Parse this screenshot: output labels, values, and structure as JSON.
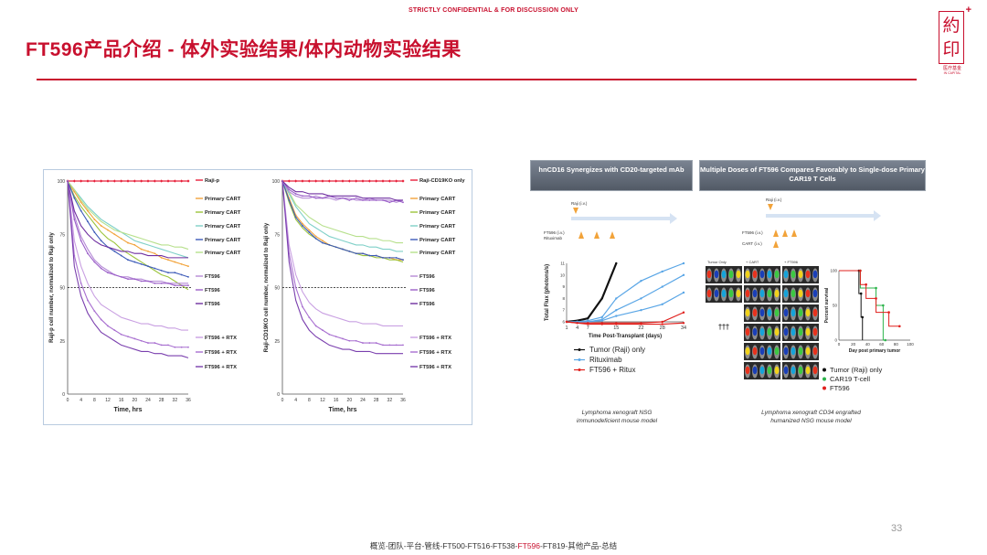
{
  "header": {
    "confidential": "STRICTLY CONFIDENTIAL & FOR DISCUSSION ONLY",
    "title": "FT596产品介绍 - 体外实验结果/体内动物实验结果"
  },
  "logo": {
    "glyph_top": "約",
    "glyph_bottom": "印",
    "plus": "+",
    "cn": "医疗基金",
    "en": "IN CAPITAL"
  },
  "page_number": "33",
  "footer": {
    "before": "概览-团队-平台-管线-FT500-FT516-FT538-",
    "highlight": "FT596",
    "after": "-FT819-其他产品-总结"
  },
  "colors": {
    "brand_red": "#c8102e"
  },
  "panels": {
    "chart1_caption_1": "Lymphoma xenograft NSG",
    "chart1_caption_2": "immunodeficient mouse model",
    "chart2_caption_1": "Lymphoma xenograft CD34 engrafted",
    "chart2_caption_2": "humanized NSG mouse model",
    "hdr_a": "hnCD16 Synergizes with CD20-targeted mAb",
    "hdr_b": "Multiple Doses of FT596 Compares Favorably to Single-dose Primary CAR19 T Cells",
    "schedule_a": {
      "top": "Raji (i.v.)",
      "bottom_1": "FT596 (i.v.)",
      "bottom_2": "Rituximab"
    },
    "schedule_b": {
      "top": "Raji (i.v.)",
      "bottom_1": "FT596 (i.v.)",
      "bottom_2": "CART (i.v.)"
    },
    "imaging": {
      "col1": "Tumor Only",
      "col2": "+ CART",
      "col3": "+ FT596",
      "deaths": "†††"
    }
  },
  "chart_data": [
    {
      "type": "line",
      "xlabel": "Time, hrs",
      "ylabel": "Raji-p cell number, normalized to Raji only",
      "x": [
        0,
        2,
        4,
        6,
        8,
        10,
        12,
        14,
        16,
        18,
        20,
        22,
        24,
        26,
        28,
        30,
        32,
        34,
        36
      ],
      "x_ticks": [
        0,
        4,
        8,
        12,
        16,
        20,
        24,
        28,
        32,
        36
      ],
      "y_ticks": [
        0,
        25,
        50,
        75,
        100
      ],
      "ylim": [
        0,
        100
      ],
      "reference_line": 50,
      "series": [
        {
          "name": "Raji-p",
          "color": "#e8203a",
          "values": [
            100,
            100,
            100,
            100,
            100,
            100,
            100,
            100,
            100,
            100,
            100,
            100,
            100,
            100,
            100,
            100,
            100,
            100,
            100
          ]
        },
        {
          "name": "Primary CART",
          "color": "#f2a33a",
          "values": [
            100,
            95,
            90,
            86,
            82,
            79,
            77,
            75,
            73,
            71,
            70,
            68,
            67,
            66,
            64,
            63,
            62,
            61,
            60
          ]
        },
        {
          "name": "Primary CART",
          "color": "#9cc43c",
          "values": [
            100,
            93,
            88,
            84,
            80,
            76,
            73,
            71,
            68,
            66,
            64,
            62,
            60,
            58,
            56,
            55,
            53,
            51,
            49
          ]
        },
        {
          "name": "Primary CART",
          "color": "#7fd0c8",
          "values": [
            100,
            96,
            92,
            88,
            85,
            82,
            80,
            78,
            76,
            74,
            72,
            71,
            70,
            69,
            68,
            67,
            66,
            65,
            64
          ]
        },
        {
          "name": "Primary CART",
          "color": "#3d5bb8",
          "values": [
            100,
            92,
            86,
            81,
            76,
            72,
            69,
            67,
            65,
            63,
            62,
            61,
            60,
            59,
            58,
            57,
            57,
            56,
            55
          ]
        },
        {
          "name": "Primary CART",
          "color": "#b7e08c",
          "values": [
            100,
            96,
            91,
            87,
            84,
            81,
            79,
            77,
            76,
            75,
            74,
            73,
            72,
            71,
            70,
            70,
            69,
            69,
            68
          ]
        },
        {
          "name": "FT596",
          "color": "#b58ad6",
          "values": [
            100,
            84,
            74,
            68,
            63,
            60,
            58,
            56,
            55,
            55,
            54,
            54,
            53,
            53,
            53,
            52,
            52,
            52,
            52
          ]
        },
        {
          "name": "FT596",
          "color": "#9b5fc8",
          "values": [
            100,
            82,
            72,
            66,
            62,
            59,
            57,
            56,
            55,
            54,
            54,
            53,
            53,
            52,
            52,
            52,
            51,
            51,
            51
          ]
        },
        {
          "name": "FT596",
          "color": "#6f2fa0",
          "values": [
            100,
            86,
            79,
            75,
            72,
            70,
            69,
            68,
            67,
            67,
            66,
            66,
            65,
            65,
            65,
            64,
            64,
            64,
            64
          ]
        },
        {
          "name": "FT596 + RTX",
          "color": "#c9a0e2",
          "values": [
            100,
            72,
            60,
            52,
            46,
            42,
            40,
            38,
            36,
            35,
            34,
            33,
            33,
            32,
            32,
            31,
            31,
            30,
            30
          ]
        },
        {
          "name": "FT596 + RTX",
          "color": "#a86fd0",
          "values": [
            100,
            65,
            52,
            44,
            39,
            35,
            32,
            30,
            28,
            27,
            26,
            25,
            24,
            24,
            23,
            23,
            22,
            22,
            22
          ]
        },
        {
          "name": "FT596 + RTX",
          "color": "#7a3fae",
          "values": [
            100,
            60,
            46,
            38,
            33,
            29,
            27,
            25,
            23,
            22,
            21,
            20,
            20,
            19,
            19,
            18,
            18,
            18,
            17
          ]
        }
      ]
    },
    {
      "type": "line",
      "xlabel": "Time, hrs",
      "ylabel": "Raji-CD19KO cell number, normalized to Raji only",
      "x": [
        0,
        2,
        4,
        6,
        8,
        10,
        12,
        14,
        16,
        18,
        20,
        22,
        24,
        26,
        28,
        30,
        32,
        34,
        36
      ],
      "x_ticks": [
        0,
        4,
        8,
        12,
        16,
        20,
        24,
        28,
        32,
        36
      ],
      "y_ticks": [
        0,
        25,
        50,
        75,
        100
      ],
      "ylim": [
        0,
        100
      ],
      "reference_line": 50,
      "series": [
        {
          "name": "Raji-CD19KO only",
          "color": "#e8203a",
          "values": [
            100,
            100,
            100,
            100,
            100,
            100,
            100,
            100,
            100,
            100,
            100,
            100,
            100,
            100,
            100,
            100,
            100,
            100,
            100
          ]
        },
        {
          "name": "Primary CART",
          "color": "#f2a33a",
          "values": [
            100,
            92,
            84,
            80,
            77,
            74,
            72,
            70,
            69,
            68,
            67,
            66,
            66,
            65,
            65,
            64,
            64,
            63,
            63
          ]
        },
        {
          "name": "Primary CART",
          "color": "#9cc43c",
          "values": [
            100,
            90,
            82,
            78,
            75,
            73,
            71,
            70,
            69,
            68,
            67,
            66,
            65,
            65,
            64,
            64,
            63,
            63,
            62
          ]
        },
        {
          "name": "Primary CART",
          "color": "#7fd0c8",
          "values": [
            100,
            94,
            88,
            84,
            80,
            78,
            76,
            74,
            73,
            72,
            71,
            70,
            70,
            69,
            69,
            68,
            68,
            67,
            67
          ]
        },
        {
          "name": "Primary CART",
          "color": "#3d5bb8",
          "values": [
            100,
            91,
            83,
            79,
            76,
            73,
            71,
            70,
            69,
            68,
            67,
            66,
            66,
            65,
            65,
            64,
            64,
            64,
            63
          ]
        },
        {
          "name": "Primary CART",
          "color": "#b7e08c",
          "values": [
            100,
            95,
            89,
            86,
            83,
            81,
            79,
            78,
            77,
            76,
            75,
            74,
            74,
            73,
            73,
            72,
            72,
            71,
            71
          ]
        },
        {
          "name": "FT596",
          "color": "#b58ad6",
          "values": [
            100,
            95,
            93,
            92,
            92,
            93,
            92,
            92,
            91,
            92,
            92,
            91,
            91,
            92,
            91,
            91,
            91,
            90,
            91
          ]
        },
        {
          "name": "FT596",
          "color": "#9b5fc8",
          "values": [
            100,
            96,
            94,
            93,
            93,
            92,
            92,
            93,
            92,
            92,
            91,
            92,
            91,
            91,
            91,
            91,
            90,
            91,
            90
          ]
        },
        {
          "name": "FT596",
          "color": "#6f2fa0",
          "values": [
            100,
            97,
            95,
            95,
            94,
            94,
            94,
            93,
            93,
            93,
            93,
            93,
            92,
            92,
            92,
            92,
            92,
            91,
            91
          ]
        },
        {
          "name": "FT596 + RTX",
          "color": "#c9a0e2",
          "values": [
            100,
            70,
            56,
            48,
            43,
            40,
            38,
            37,
            36,
            35,
            34,
            34,
            33,
            33,
            33,
            32,
            32,
            32,
            32
          ]
        },
        {
          "name": "FT596 + RTX",
          "color": "#a86fd0",
          "values": [
            100,
            66,
            50,
            41,
            36,
            32,
            30,
            28,
            27,
            26,
            25,
            25,
            24,
            24,
            24,
            23,
            23,
            23,
            23
          ]
        },
        {
          "name": "FT596 + RTX",
          "color": "#7a3fae",
          "values": [
            100,
            62,
            44,
            35,
            30,
            27,
            25,
            23,
            22,
            21,
            21,
            20,
            20,
            20,
            19,
            19,
            19,
            19,
            19
          ]
        }
      ]
    },
    {
      "type": "line",
      "xlabel": "Time Post-Transplant (days)",
      "ylabel": "Total Flux (photons/s)",
      "y_scale": "log",
      "x_ticks": [
        1,
        4,
        7,
        15,
        22,
        28,
        34
      ],
      "y_ticks_log10": [
        6,
        7,
        8,
        9,
        10,
        11
      ],
      "series": [
        {
          "name": "Tumor (Raji) only",
          "color": "#111111",
          "x": [
            1,
            4,
            7,
            11,
            15
          ],
          "log10_values": [
            6.0,
            6.1,
            6.3,
            8.0,
            11.0
          ]
        },
        {
          "name": "Rituximab",
          "color": "#5aa6e6",
          "x": [
            1,
            4,
            7,
            11,
            15,
            22,
            28,
            34
          ],
          "log10_values": [
            6.0,
            6.0,
            6.1,
            6.4,
            8.0,
            9.5,
            10.3,
            11.0
          ]
        },
        {
          "name": "Rituximab",
          "color": "#5aa6e6",
          "x": [
            1,
            4,
            7,
            11,
            15,
            22,
            28,
            34
          ],
          "log10_values": [
            6.0,
            6.0,
            6.0,
            6.2,
            7.0,
            8.0,
            9.0,
            10.0
          ]
        },
        {
          "name": "Rituximab",
          "color": "#5aa6e6",
          "x": [
            1,
            4,
            7,
            11,
            15,
            22,
            28,
            34
          ],
          "log10_values": [
            6.0,
            6.0,
            6.0,
            6.1,
            6.5,
            7.0,
            7.5,
            8.5
          ]
        },
        {
          "name": "FT596 + Ritux",
          "color": "#e0201d",
          "x": [
            1,
            4,
            7,
            11,
            15,
            22,
            28,
            34
          ],
          "log10_values": [
            6.0,
            5.9,
            5.9,
            5.9,
            5.9,
            5.9,
            6.0,
            6.8
          ]
        },
        {
          "name": "FT596 + Ritux",
          "color": "#e0201d",
          "x": [
            1,
            4,
            7,
            11,
            15,
            22,
            28,
            34
          ],
          "log10_values": [
            6.0,
            5.9,
            5.8,
            5.8,
            5.8,
            5.8,
            5.8,
            5.9
          ]
        }
      ]
    },
    {
      "type": "line",
      "xlabel": "Day post primary tumor",
      "ylabel": "Percent survival",
      "xlim": [
        0,
        100
      ],
      "ylim": [
        0,
        100
      ],
      "x_ticks": [
        0,
        20,
        40,
        60,
        80,
        100
      ],
      "y_ticks": [
        0,
        50,
        100
      ],
      "series": [
        {
          "name": "Tumor (Raji) only",
          "color": "#111111",
          "x": [
            0,
            28,
            28,
            31,
            31,
            33,
            33
          ],
          "values": [
            100,
            100,
            67,
            67,
            33,
            33,
            0
          ]
        },
        {
          "name": "CAR19 T-cell",
          "color": "#2bb34a",
          "x": [
            0,
            30,
            30,
            52,
            52,
            62,
            62,
            65
          ],
          "values": [
            100,
            100,
            75,
            75,
            50,
            50,
            0,
            0
          ]
        },
        {
          "name": "FT596",
          "color": "#e0201d",
          "x": [
            0,
            30,
            30,
            38,
            38,
            52,
            52,
            70,
            70,
            85
          ],
          "values": [
            100,
            100,
            80,
            80,
            60,
            60,
            40,
            40,
            20,
            20
          ]
        }
      ]
    }
  ]
}
